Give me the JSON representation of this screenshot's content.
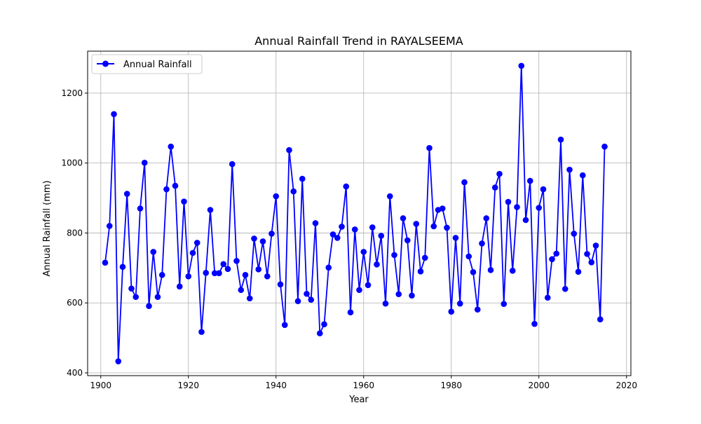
{
  "chart_data": {
    "type": "line",
    "title": "Annual Rainfall Trend in RAYALSEEMA",
    "xlabel": "Year",
    "ylabel": "Annual Rainfall (mm)",
    "xlim": [
      1897,
      2021
    ],
    "ylim": [
      392,
      1320
    ],
    "xticks": [
      1900,
      1920,
      1940,
      1960,
      1980,
      2000,
      2020
    ],
    "yticks": [
      400,
      600,
      800,
      1000,
      1200
    ],
    "grid": true,
    "legend_position": "top-left",
    "series": [
      {
        "name": "Annual Rainfall",
        "color": "#0000ff",
        "marker": "circle",
        "x": [
          1901,
          1902,
          1903,
          1904,
          1905,
          1906,
          1907,
          1908,
          1909,
          1910,
          1911,
          1912,
          1913,
          1914,
          1915,
          1916,
          1917,
          1918,
          1919,
          1920,
          1921,
          1922,
          1923,
          1924,
          1925,
          1926,
          1927,
          1928,
          1929,
          1930,
          1931,
          1932,
          1933,
          1934,
          1935,
          1936,
          1937,
          1938,
          1939,
          1940,
          1941,
          1942,
          1943,
          1944,
          1945,
          1946,
          1947,
          1948,
          1949,
          1950,
          1951,
          1952,
          1953,
          1954,
          1955,
          1956,
          1957,
          1958,
          1959,
          1960,
          1961,
          1962,
          1963,
          1964,
          1965,
          1966,
          1967,
          1968,
          1969,
          1970,
          1971,
          1972,
          1973,
          1974,
          1975,
          1976,
          1977,
          1978,
          1979,
          1980,
          1981,
          1982,
          1983,
          1984,
          1985,
          1986,
          1987,
          1988,
          1989,
          1990,
          1991,
          1992,
          1993,
          1994,
          1995,
          1996,
          1997,
          1998,
          1999,
          2000,
          2001,
          2002,
          2003,
          2004,
          2005,
          2006,
          2007,
          2008,
          2009,
          2010,
          2011,
          2012,
          2013,
          2014,
          2015
        ],
        "y": [
          715,
          820,
          1140,
          433,
          703,
          912,
          641,
          617,
          870,
          1001,
          591,
          746,
          617,
          680,
          925,
          1047,
          935,
          647,
          890,
          676,
          743,
          772,
          517,
          686,
          866,
          685,
          685,
          711,
          697,
          997,
          720,
          637,
          680,
          613,
          784,
          696,
          776,
          676,
          798,
          905,
          653,
          537,
          1037,
          919,
          605,
          955,
          626,
          609,
          828,
          513,
          539,
          701,
          796,
          786,
          818,
          933,
          573,
          810,
          637,
          746,
          651,
          816,
          710,
          792,
          598,
          905,
          737,
          625,
          842,
          779,
          621,
          826,
          690,
          729,
          1043,
          819,
          866,
          870,
          815,
          575,
          786,
          598,
          945,
          733,
          688,
          581,
          770,
          842,
          694,
          930,
          969,
          597,
          889,
          692,
          874,
          1278,
          837,
          949,
          540,
          872,
          925,
          615,
          725,
          741,
          1067,
          640,
          981,
          798,
          689,
          965,
          740,
          716,
          764,
          553,
          1047
        ]
      }
    ]
  }
}
